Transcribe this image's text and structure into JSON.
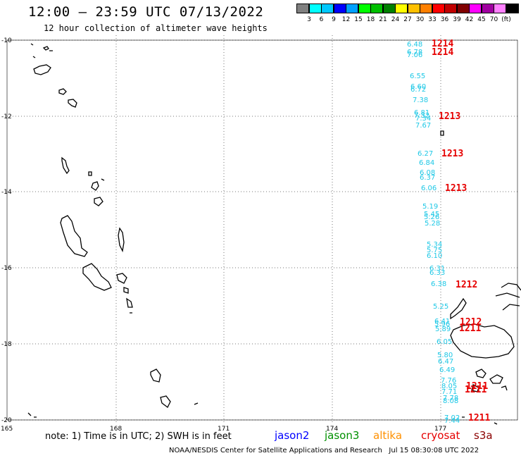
{
  "title": "12:00 – 23:59 UTC 07/13/2022",
  "subtitle": "12 hour collection of altimeter wave heights",
  "legend": {
    "unit": "(ft)",
    "colors": [
      "#808080",
      "#00ffff",
      "#00c8ff",
      "#0000ff",
      "#00a0ff",
      "#00ff00",
      "#00c000",
      "#008000",
      "#ffff00",
      "#ffc000",
      "#ff8000",
      "#ff0000",
      "#c00000",
      "#800000",
      "#ff00ff",
      "#a000a0",
      "#ff80ff",
      "#000000"
    ],
    "labels": [
      "3",
      "6",
      "9",
      "12",
      "15",
      "18",
      "21",
      "24",
      "27",
      "30",
      "33",
      "36",
      "39",
      "42",
      "45",
      "70"
    ]
  },
  "axes": {
    "lat_labels": [
      "-10",
      "-12",
      "-14",
      "-16",
      "-18",
      "-20"
    ],
    "lon_labels": [
      "165",
      "168",
      "171",
      "174",
      "177"
    ]
  },
  "track_values": [
    "6.48",
    "6.78",
    "7.06",
    "6.55",
    "6.60",
    "6.72",
    "7.38",
    "6.81",
    "7.32",
    "7.34",
    "7.67",
    "6.27",
    "6.84",
    "6.08",
    "6.37",
    "6.06",
    "5.19",
    "5.45",
    "5.26",
    "5.28",
    "5.34",
    "5.75",
    "6.10",
    "6.31",
    "6.33",
    "6.38",
    "5.25",
    "6.41",
    "5.96",
    "5.89",
    "6.05",
    "5.80",
    "6.47",
    "6.49",
    "7.76",
    "8.05",
    "7.71",
    "7.78",
    "8.08",
    "7.02",
    "7.44"
  ],
  "time_labels": [
    "1214",
    "1214",
    "1213",
    "1213",
    "1213",
    "1212",
    "1212",
    "1211",
    "1211",
    "1211",
    "1211"
  ],
  "note": "note: 1) Time is in UTC; 2) SWH is in feet",
  "satellites": [
    {
      "name": "jason2",
      "color": "#0000ff"
    },
    {
      "name": "jason3",
      "color": "#009000"
    },
    {
      "name": "altika",
      "color": "#ff9000"
    },
    {
      "name": "cryosat",
      "color": "#e60000"
    },
    {
      "name": "s3a",
      "color": "#8b0000"
    }
  ],
  "credit": "NOAA/NESDIS Center for Satellite Applications and Research",
  "timestamp": "Jul 15 08:30:08 UTC 2022"
}
